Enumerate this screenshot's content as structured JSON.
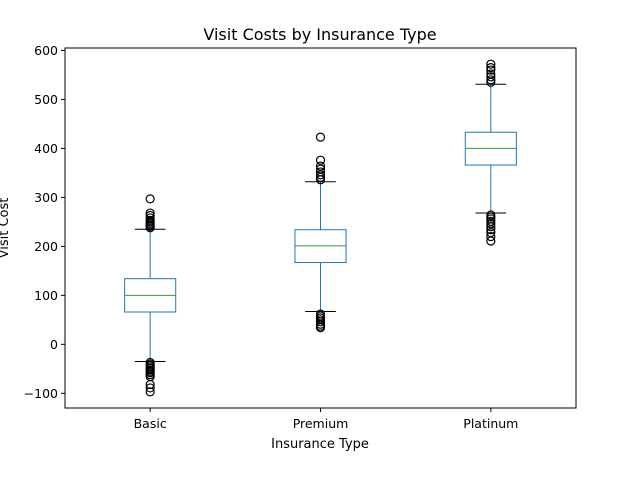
{
  "chart_data": {
    "type": "box",
    "title": "Visit Costs by Insurance Type",
    "xlabel": "Insurance Type",
    "ylabel": "Visit Cost",
    "ylim": [
      -130,
      605
    ],
    "yticks": [
      -100,
      0,
      100,
      200,
      300,
      400,
      500,
      600
    ],
    "grid": false,
    "categories": [
      "Basic",
      "Premium",
      "Platinum"
    ],
    "boxes": [
      {
        "category": "Basic",
        "whisker_low": -35,
        "q1": 66,
        "median": 100,
        "q3": 134,
        "whisker_high": 235,
        "outliers": [
          -37,
          -40,
          -43,
          -46,
          -49,
          -52,
          -55,
          -58,
          -62,
          -66,
          -82,
          -89,
          -97,
          238,
          241,
          244,
          247,
          250,
          253,
          258,
          263,
          268,
          297
        ]
      },
      {
        "category": "Premium",
        "whisker_low": 67,
        "q1": 167,
        "median": 201,
        "q3": 234,
        "whisker_high": 332,
        "outliers": [
          62,
          58,
          54,
          50,
          46,
          41,
          37,
          34,
          336,
          341,
          346,
          352,
          358,
          364,
          376,
          423
        ]
      },
      {
        "category": "Platinum",
        "whisker_low": 268,
        "q1": 366,
        "median": 400,
        "q3": 433,
        "whisker_high": 531,
        "outliers": [
          264,
          260,
          256,
          251,
          246,
          240,
          234,
          228,
          220,
          211,
          535,
          540,
          546,
          552,
          560,
          565,
          572
        ]
      }
    ],
    "colors": {
      "box": "#1f77b4",
      "median": "#2ca02c",
      "whisker_cap": "#000000",
      "outlier": "#000000"
    }
  }
}
